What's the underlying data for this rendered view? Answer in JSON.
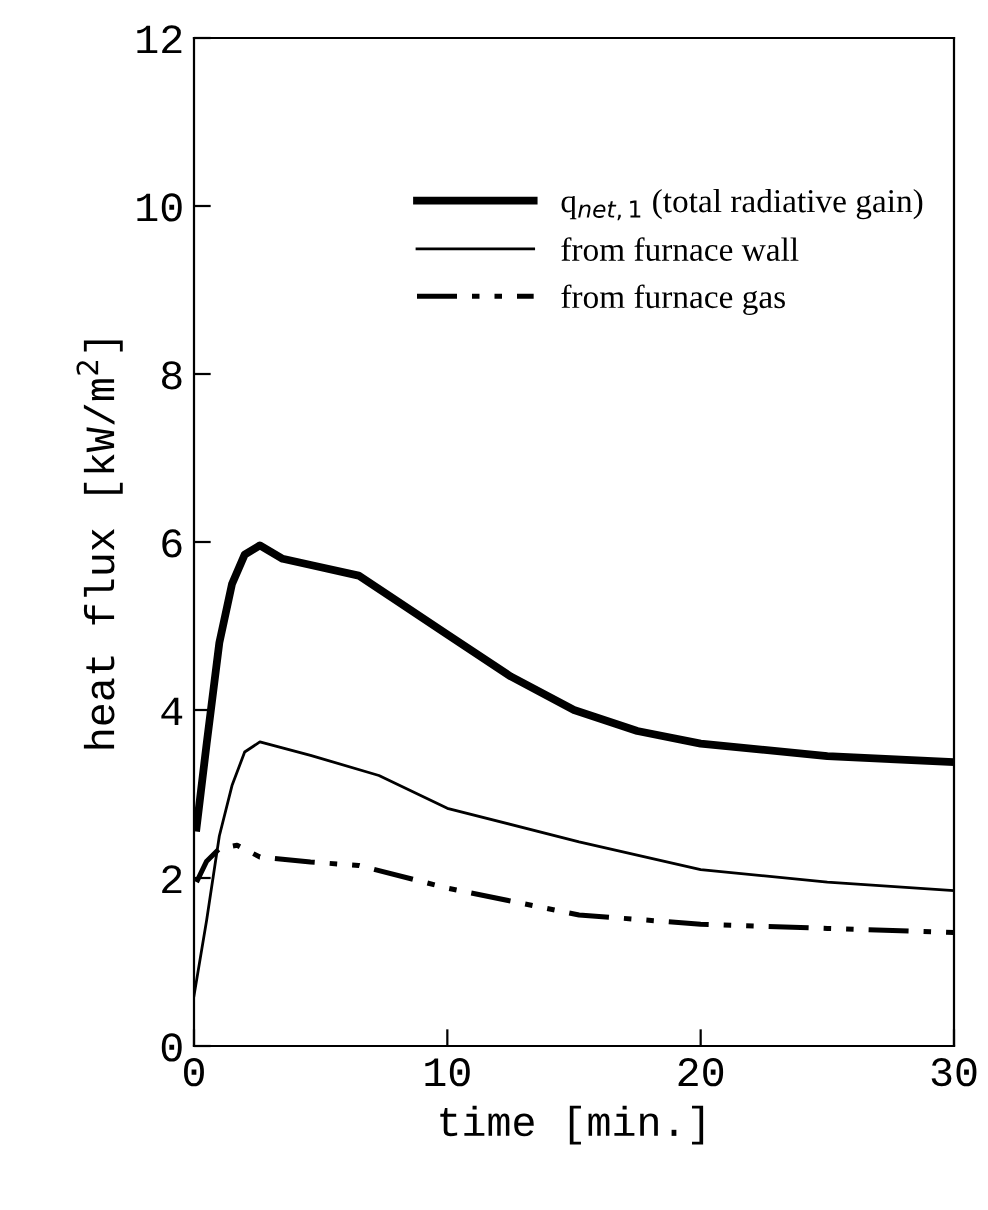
{
  "chart_data": {
    "type": "line",
    "xlabel": "time [min.]",
    "ylabel": "heat flux [kW/m$^{2}$]",
    "xlim": [
      0,
      30
    ],
    "ylim": [
      0,
      12
    ],
    "xticks": [
      0,
      10,
      20,
      30
    ],
    "yticks": [
      0,
      2,
      4,
      6,
      8,
      10,
      12
    ],
    "grid": false,
    "legend": "top right",
    "series": [
      {
        "name": "q$_{net,1}$ (total radiative gain)",
        "color": "#000000",
        "line_style": "solid",
        "x": [
          0.1,
          0.5,
          1,
          1.5,
          2,
          2.6,
          3.5,
          4.7,
          6.5,
          8,
          10,
          12.5,
          15,
          17.5,
          20,
          25,
          30
        ],
        "values": [
          2.6,
          3.6,
          4.8,
          5.5,
          5.85,
          5.96,
          5.8,
          5.72,
          5.6,
          5.3,
          4.9,
          4.4,
          4.0,
          3.75,
          3.6,
          3.45,
          3.38
        ]
      },
      {
        "name": "from furnace wall",
        "color": "#000000",
        "line_style": "solid",
        "x": [
          0,
          0.5,
          1,
          1.5,
          2,
          2.6,
          4.6,
          7.3,
          10,
          15.2,
          20,
          25,
          30
        ],
        "values": [
          0.6,
          1.5,
          2.5,
          3.1,
          3.5,
          3.62,
          3.46,
          3.22,
          2.83,
          2.43,
          2.1,
          1.95,
          1.85
        ]
      },
      {
        "name": "from furnace gas",
        "color": "#000000",
        "line_style": "dashed",
        "x": [
          0.1,
          0.5,
          1,
          1.7,
          2.6,
          4.6,
          6.5,
          10,
          15.2,
          20,
          25,
          30
        ],
        "values": [
          1.95,
          2.2,
          2.35,
          2.39,
          2.25,
          2.19,
          2.15,
          1.88,
          1.56,
          1.45,
          1.4,
          1.35
        ]
      }
    ]
  }
}
